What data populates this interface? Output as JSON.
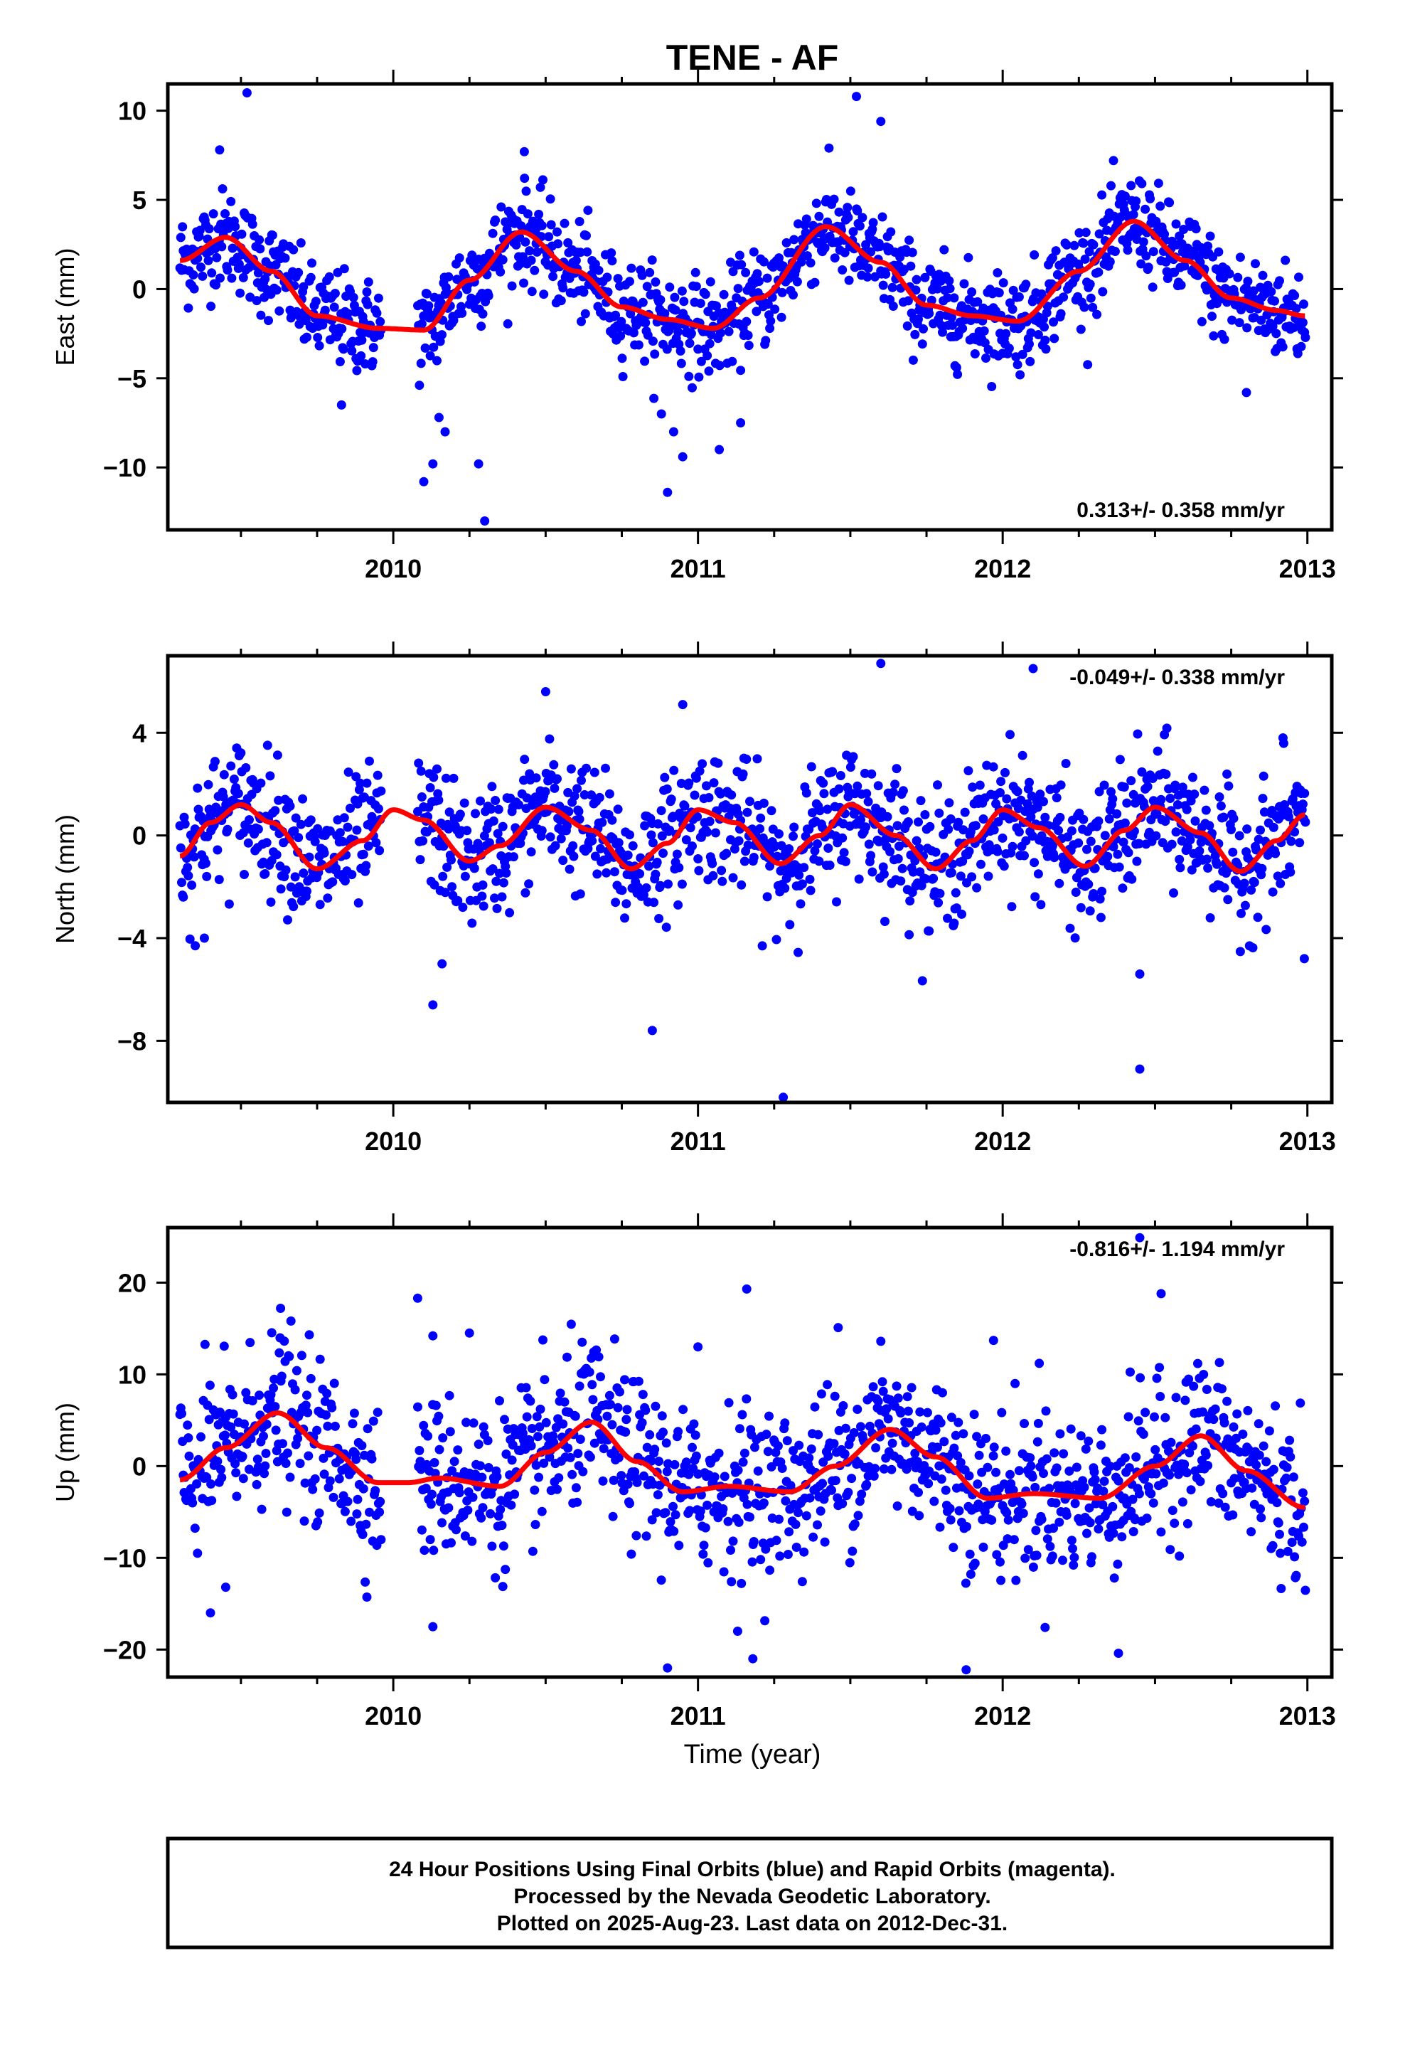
{
  "page_title": "TENE - AF",
  "xlabel": "Time (year)",
  "footer": {
    "line1": "24 Hour Positions Using Final Orbits (blue) and Rapid Orbits (magenta).",
    "line2": "Processed by the Nevada Geodetic Laboratory.",
    "line3": "Plotted on 2025-Aug-23. Last data on 2012-Dec-31."
  },
  "colors": {
    "points": "#0000ff",
    "model": "#ff0000",
    "axes": "#000000"
  },
  "chart_data": [
    {
      "type": "scatter",
      "title": "TENE - AF",
      "ylabel": "East (mm)",
      "xlabel": "",
      "xlim": [
        2009.26,
        2013.08
      ],
      "ylim": [
        -13.5,
        11.5
      ],
      "x_ticks": [
        2010,
        2011,
        2012,
        2013
      ],
      "y_ticks": [
        -10,
        -5,
        0,
        5,
        10
      ],
      "y_tick_labels": [
        "−10",
        "−5",
        "0",
        "5",
        "10"
      ],
      "annotation": "0.313+/- 0.358 mm/yr",
      "annotation_position": "bottom-right",
      "trend": 0.313,
      "seasonal_model": [
        [
          2009.3,
          1.6
        ],
        [
          2009.45,
          2.9
        ],
        [
          2009.6,
          1.0
        ],
        [
          2009.75,
          -1.5
        ],
        [
          2009.95,
          -2.2
        ],
        [
          2010.1,
          -2.3
        ],
        [
          2010.25,
          0.5
        ],
        [
          2010.42,
          3.2
        ],
        [
          2010.6,
          1.0
        ],
        [
          2010.75,
          -1.0
        ],
        [
          2010.9,
          -1.7
        ],
        [
          2011.05,
          -2.2
        ],
        [
          2011.2,
          -0.5
        ],
        [
          2011.42,
          3.5
        ],
        [
          2011.6,
          1.5
        ],
        [
          2011.75,
          -0.9
        ],
        [
          2011.9,
          -1.5
        ],
        [
          2012.05,
          -1.8
        ],
        [
          2012.25,
          1.0
        ],
        [
          2012.43,
          3.8
        ],
        [
          2012.6,
          1.6
        ],
        [
          2012.75,
          -0.5
        ],
        [
          2012.9,
          -1.2
        ],
        [
          2012.99,
          -1.5
        ]
      ],
      "scatter_sd": 1.35,
      "outliers": [
        [
          2009.52,
          11.0
        ],
        [
          2011.52,
          10.8
        ],
        [
          2011.6,
          9.4
        ],
        [
          2009.43,
          7.8
        ],
        [
          2010.43,
          7.7
        ],
        [
          2010.1,
          -10.8
        ],
        [
          2010.13,
          -9.8
        ],
        [
          2010.28,
          -9.8
        ],
        [
          2010.3,
          -13.0
        ],
        [
          2010.15,
          -7.2
        ],
        [
          2010.17,
          -8.0
        ],
        [
          2010.88,
          -7.0
        ],
        [
          2010.92,
          -8.0
        ],
        [
          2010.95,
          -9.4
        ],
        [
          2010.9,
          -11.4
        ],
        [
          2011.07,
          -9.0
        ],
        [
          2011.14,
          -7.5
        ],
        [
          2009.83,
          -6.5
        ],
        [
          2012.8,
          -5.8
        ]
      ]
    },
    {
      "type": "scatter",
      "title": "",
      "ylabel": "North (mm)",
      "xlabel": "",
      "xlim": [
        2009.26,
        2013.08
      ],
      "ylim": [
        -10.4,
        7.0
      ],
      "x_ticks": [
        2010,
        2011,
        2012,
        2013
      ],
      "y_ticks": [
        -8,
        -4,
        0,
        4
      ],
      "y_tick_labels": [
        "−8",
        "−4",
        "0",
        "4"
      ],
      "annotation": "-0.049+/- 0.338 mm/yr",
      "annotation_position": "top-right",
      "trend": -0.049,
      "seasonal_model": [
        [
          2009.3,
          -0.8
        ],
        [
          2009.4,
          0.5
        ],
        [
          2009.5,
          1.2
        ],
        [
          2009.6,
          0.5
        ],
        [
          2009.75,
          -1.3
        ],
        [
          2009.9,
          -0.2
        ],
        [
          2010.0,
          1.0
        ],
        [
          2010.1,
          0.6
        ],
        [
          2010.25,
          -1.0
        ],
        [
          2010.35,
          -0.4
        ],
        [
          2010.5,
          1.1
        ],
        [
          2010.65,
          0.2
        ],
        [
          2010.78,
          -1.3
        ],
        [
          2010.9,
          -0.3
        ],
        [
          2011.0,
          1.0
        ],
        [
          2011.12,
          0.5
        ],
        [
          2011.27,
          -1.1
        ],
        [
          2011.4,
          0.0
        ],
        [
          2011.5,
          1.2
        ],
        [
          2011.65,
          0.0
        ],
        [
          2011.78,
          -1.3
        ],
        [
          2011.9,
          -0.2
        ],
        [
          2012.0,
          1.0
        ],
        [
          2012.12,
          0.3
        ],
        [
          2012.27,
          -1.2
        ],
        [
          2012.4,
          0.2
        ],
        [
          2012.5,
          1.1
        ],
        [
          2012.65,
          0.1
        ],
        [
          2012.78,
          -1.4
        ],
        [
          2012.9,
          -0.2
        ],
        [
          2012.99,
          0.8
        ]
      ],
      "scatter_sd": 1.25,
      "outliers": [
        [
          2009.35,
          -4.3
        ],
        [
          2009.38,
          -4.0
        ],
        [
          2010.13,
          -6.6
        ],
        [
          2010.16,
          -5.0
        ],
        [
          2010.5,
          5.6
        ],
        [
          2010.85,
          -7.6
        ],
        [
          2010.95,
          5.1
        ],
        [
          2011.28,
          -10.2
        ],
        [
          2011.6,
          6.7
        ],
        [
          2012.1,
          6.5
        ],
        [
          2012.45,
          -9.1
        ],
        [
          2012.45,
          -5.4
        ],
        [
          2012.99,
          -4.8
        ],
        [
          2012.92,
          3.8
        ]
      ]
    },
    {
      "type": "scatter",
      "title": "",
      "ylabel": "Up (mm)",
      "xlabel": "Time (year)",
      "xlim": [
        2009.26,
        2013.08
      ],
      "ylim": [
        -23,
        26
      ],
      "x_ticks": [
        2010,
        2011,
        2012,
        2013
      ],
      "y_ticks": [
        -20,
        -10,
        0,
        10,
        20
      ],
      "y_tick_labels": [
        "−20",
        "−10",
        "0",
        "10",
        "20"
      ],
      "annotation": "-0.816+/- 1.194 mm/yr",
      "annotation_position": "top-right",
      "trend": -0.816,
      "seasonal_model": [
        [
          2009.3,
          -1.5
        ],
        [
          2009.45,
          2.0
        ],
        [
          2009.62,
          5.8
        ],
        [
          2009.78,
          2.0
        ],
        [
          2009.95,
          -1.8
        ],
        [
          2010.05,
          -1.8
        ],
        [
          2010.15,
          -1.3
        ],
        [
          2010.35,
          -2.2
        ],
        [
          2010.5,
          1.5
        ],
        [
          2010.65,
          4.8
        ],
        [
          2010.8,
          0.5
        ],
        [
          2010.95,
          -2.8
        ],
        [
          2011.1,
          -2.2
        ],
        [
          2011.3,
          -2.8
        ],
        [
          2011.45,
          0.0
        ],
        [
          2011.63,
          4.0
        ],
        [
          2011.78,
          1.0
        ],
        [
          2011.95,
          -3.5
        ],
        [
          2012.1,
          -3.0
        ],
        [
          2012.32,
          -3.5
        ],
        [
          2012.5,
          0.0
        ],
        [
          2012.65,
          3.3
        ],
        [
          2012.8,
          -0.5
        ],
        [
          2012.99,
          -4.5
        ]
      ],
      "scatter_sd": 4.3,
      "outliers": [
        [
          2009.63,
          17.2
        ],
        [
          2010.08,
          18.3
        ],
        [
          2010.13,
          14.2
        ],
        [
          2010.25,
          14.5
        ],
        [
          2011.16,
          19.3
        ],
        [
          2011.46,
          15.1
        ],
        [
          2012.52,
          18.8
        ],
        [
          2012.45,
          24.9
        ],
        [
          2012.38,
          -20.4
        ],
        [
          2009.4,
          -16.0
        ],
        [
          2010.13,
          -17.5
        ],
        [
          2010.9,
          -22.0
        ],
        [
          2011.18,
          -21.0
        ],
        [
          2011.88,
          -22.2
        ],
        [
          2011.13,
          -18.0
        ],
        [
          2009.45,
          -13.2
        ],
        [
          2011.0,
          13.0
        ],
        [
          2011.6,
          13.6
        ],
        [
          2011.97,
          13.7
        ],
        [
          2012.12,
          11.2
        ]
      ]
    }
  ]
}
